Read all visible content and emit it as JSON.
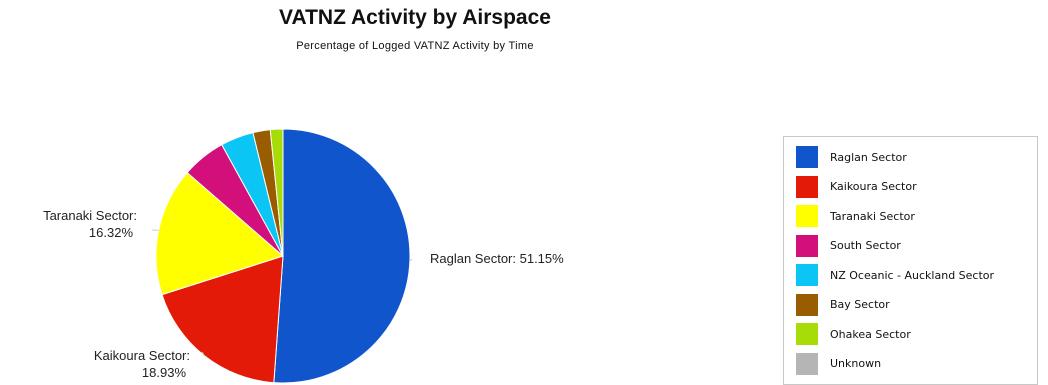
{
  "chart_data": {
    "type": "pie",
    "title": "VATNZ Activity by Airspace",
    "subtitle": "Percentage of Logged VATNZ Activity by Time",
    "legend_position": "right",
    "slices": [
      {
        "name": "Raglan Sector",
        "value": 51.15,
        "color": "#1155cc",
        "label_line1": "Raglan Sector: 51.15%",
        "label_line2": ""
      },
      {
        "name": "Kaikoura Sector",
        "value": 18.93,
        "color": "#e41a08",
        "label_line1": "Kaikoura Sector:",
        "label_line2": "18.93%"
      },
      {
        "name": "Taranaki Sector",
        "value": 16.32,
        "color": "#ffff00",
        "label_line1": "Taranaki Sector:",
        "label_line2": "16.32%"
      },
      {
        "name": "South Sector",
        "value": 5.6,
        "color": "#d20f7b",
        "label_line1": "",
        "label_line2": ""
      },
      {
        "name": "NZ Oceanic - Auckland Sector",
        "value": 4.2,
        "color": "#0bc5f5",
        "label_line1": "",
        "label_line2": ""
      },
      {
        "name": "Bay Sector",
        "value": 2.2,
        "color": "#9a5c00",
        "label_line1": "",
        "label_line2": ""
      },
      {
        "name": "Ohakea Sector",
        "value": 1.6,
        "color": "#a8dc08",
        "label_line1": "",
        "label_line2": ""
      },
      {
        "name": "Unknown",
        "value": 0,
        "color": "#b5b5b5",
        "label_line1": "",
        "label_line2": ""
      }
    ]
  }
}
